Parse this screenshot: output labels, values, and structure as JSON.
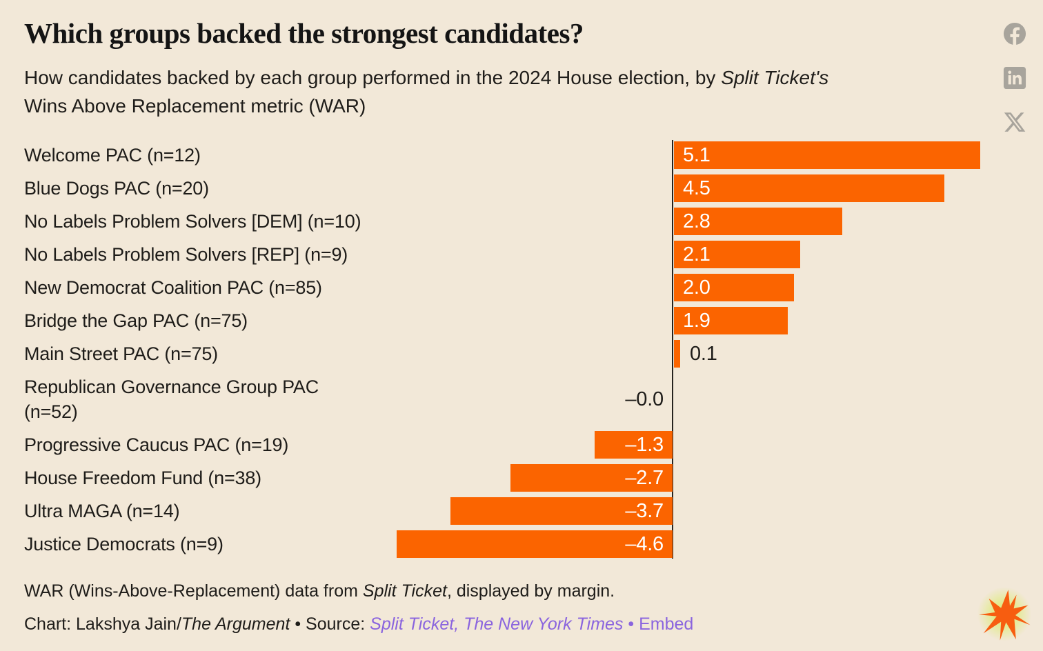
{
  "page": {
    "background_color": "#F2E8D8",
    "text_color": "#1E1C19"
  },
  "header": {
    "title": "Which groups backed the strongest candidates?",
    "subtitle_prefix": "How candidates backed by each group performed in the 2024 House election, by ",
    "subtitle_italic": "Split Ticket's",
    "subtitle_line2": "Wins Above Replacement metric (WAR)"
  },
  "share": {
    "icons": [
      "facebook-icon",
      "linkedin-icon",
      "x-icon"
    ],
    "icon_color": "#A8A49C"
  },
  "chart_data": {
    "type": "bar",
    "orientation": "horizontal",
    "bar_color": "#FB6400",
    "axis_line_color": "#26231F",
    "xlim": [
      -4.6,
      5.1
    ],
    "grid": false,
    "legend": false,
    "categories": [
      "Welcome PAC (n=12)",
      "Blue Dogs PAC (n=20)",
      "No Labels Problem Solvers [DEM] (n=10)",
      "No Labels Problem Solvers [REP] (n=9)",
      "New Democrat Coalition PAC (n=85)",
      "Bridge the Gap PAC (n=75)",
      "Main Street PAC (n=75)",
      "Republican Governance Group PAC (n=52)",
      "Progressive Caucus PAC (n=19)",
      "House Freedom Fund (n=38)",
      "Ultra MAGA (n=14)",
      "Justice Democrats (n=9)"
    ],
    "category_lines": [
      [
        "Welcome PAC (n=12)"
      ],
      [
        "Blue Dogs PAC (n=20)"
      ],
      [
        "No Labels Problem Solvers [DEM] (n=10)"
      ],
      [
        "No Labels Problem Solvers [REP] (n=9)"
      ],
      [
        "New Democrat Coalition PAC (n=85)"
      ],
      [
        "Bridge the Gap PAC (n=75)"
      ],
      [
        "Main Street PAC (n=75)"
      ],
      [
        "Republican Governance Group PAC",
        "(n=52)"
      ],
      [
        "Progressive Caucus PAC (n=19)"
      ],
      [
        "House Freedom Fund (n=38)"
      ],
      [
        "Ultra MAGA (n=14)"
      ],
      [
        "Justice Democrats (n=9)"
      ]
    ],
    "values": [
      5.1,
      4.5,
      2.8,
      2.1,
      2.0,
      1.9,
      0.1,
      -0.0,
      -1.3,
      -2.7,
      -3.7,
      -4.6
    ],
    "value_labels": [
      "5.1",
      "4.5",
      "2.8",
      "2.1",
      "2.0",
      "1.9",
      "0.1",
      "–0.0",
      "–1.3",
      "–2.7",
      "–3.7",
      "–4.6"
    ]
  },
  "footer": {
    "note_prefix": "WAR (Wins-Above-Replacement) data from ",
    "note_italic": "Split Ticket",
    "note_suffix": ", displayed by margin.",
    "credit_prefix": "Chart: Lakshya Jain/",
    "credit_italic": "The Argument",
    "credit_sep": " • ",
    "source_label": "Source: ",
    "source_link": "Split Ticket, The New York Times",
    "embed_sep": " • ",
    "embed_label": "Embed",
    "link_color": "#8A64DE"
  },
  "logo": {
    "name": "argument-starburst-logo",
    "burst_color": "#F75D10",
    "glow_color": "#D8EB60"
  }
}
